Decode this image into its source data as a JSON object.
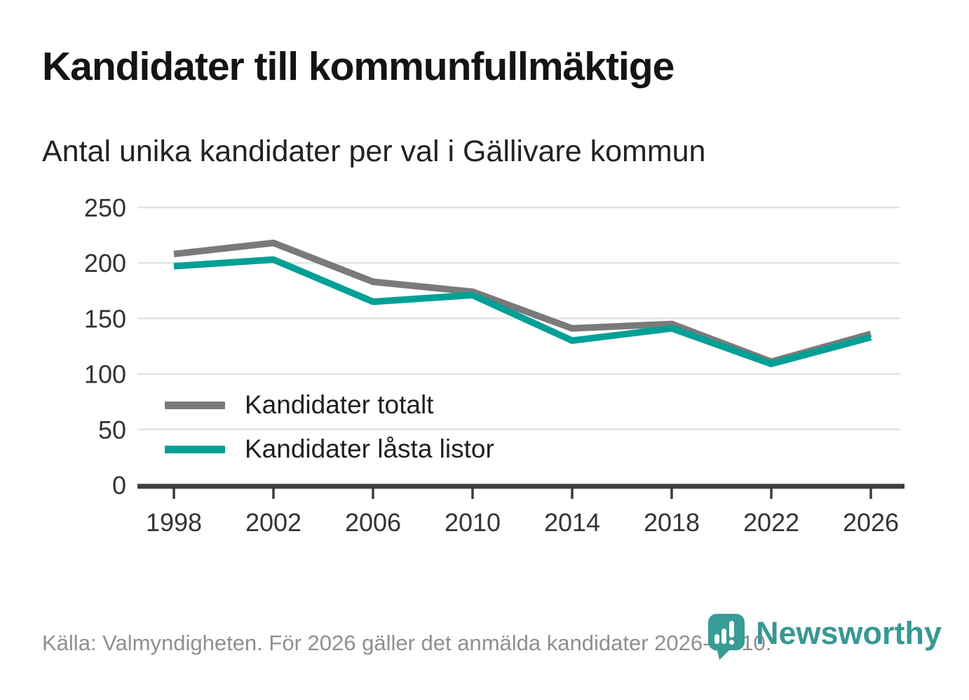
{
  "title": "Kandidater till kommunfullmäktige",
  "subtitle": "Antal unika kandidater per val i Gällivare kommun",
  "footer": {
    "source_text": "Källa: Valmyndigheten. För 2026 gäller det anmälda kandidater 2026-04-10."
  },
  "branding": {
    "logo_text": "Newsworthy",
    "logo_icon": "newsworthy-speech-bubble-barchart-icon",
    "brand_color": "#3a9c96"
  },
  "colors": {
    "total_line": "#7a7a7a",
    "locked_line": "#00a096",
    "gridline": "#e3e3e3",
    "axis": "#3d3d3d",
    "tick_label": "#333333",
    "footer_text": "#8f8f8f"
  },
  "chart_data": {
    "type": "line",
    "title": "Kandidater till kommunfullmäktige",
    "subtitle": "Antal unika kandidater per val i Gällivare kommun",
    "categories": [
      "1998",
      "2002",
      "2006",
      "2010",
      "2014",
      "2018",
      "2022",
      "2026"
    ],
    "series": [
      {
        "name": "Kandidater totalt",
        "color": "#7a7a7a",
        "values": [
          208,
          218,
          183,
          174,
          141,
          145,
          111,
          136
        ]
      },
      {
        "name": "Kandidater låsta listor",
        "color": "#00a096",
        "values": [
          197,
          203,
          165,
          171,
          130,
          141,
          109,
          133
        ]
      }
    ],
    "xlabel": "",
    "ylabel": "",
    "ylim": [
      0,
      250
    ],
    "yticks": [
      0,
      50,
      100,
      150,
      200,
      250
    ],
    "grid": "horizontal",
    "legend_position": "inside-bottom-left"
  }
}
